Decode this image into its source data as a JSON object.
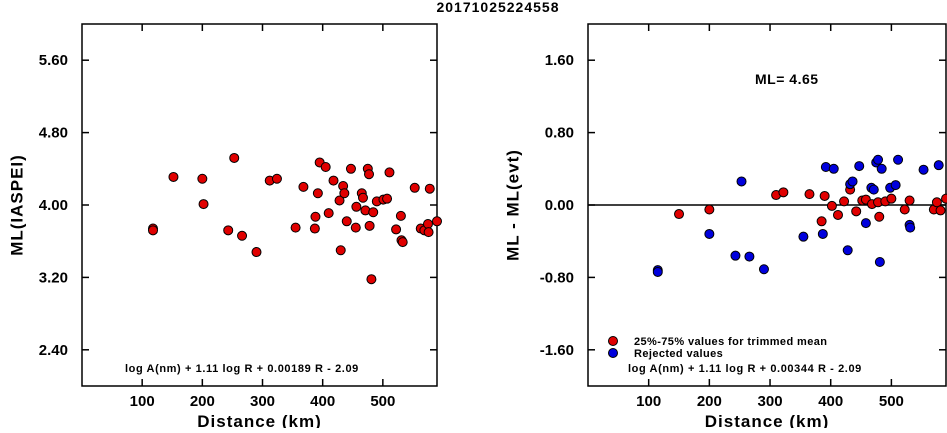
{
  "title": "20171025224558",
  "colors": {
    "red": "#e00000",
    "blue": "#0000dd",
    "axis": "#000000"
  },
  "chart_data": [
    {
      "type": "scatter",
      "xlabel": "Distance (km)",
      "ylabel": "ML(IASPEI)",
      "xlim": [
        0,
        590
      ],
      "ylim": [
        2.0,
        6.0
      ],
      "xticks": [
        100,
        200,
        300,
        400,
        500
      ],
      "xtick_labels": [
        "100",
        "200",
        "300",
        "400",
        "500"
      ],
      "yticks": [
        2.4,
        3.2,
        4.0,
        4.8,
        5.6
      ],
      "ytick_labels": [
        "2.40",
        "3.20",
        "4.00",
        "4.80",
        "5.60"
      ],
      "formula": "log A(nm) + 1.11 log R + 0.00189 R - 2.09",
      "series": [
        {
          "color": "red",
          "points": [
            [
              118,
              3.74
            ],
            [
              118,
              3.72
            ],
            [
              152,
              4.31
            ],
            [
              200,
              4.29
            ],
            [
              202,
              4.01
            ],
            [
              243,
              3.72
            ],
            [
              253,
              4.52
            ],
            [
              266,
              3.66
            ],
            [
              290,
              3.48
            ],
            [
              312,
              4.27
            ],
            [
              324,
              4.29
            ],
            [
              355,
              3.75
            ],
            [
              368,
              4.2
            ],
            [
              387,
              3.74
            ],
            [
              388,
              3.87
            ],
            [
              392,
              4.13
            ],
            [
              395,
              4.47
            ],
            [
              405,
              4.42
            ],
            [
              410,
              3.91
            ],
            [
              418,
              4.27
            ],
            [
              428,
              4.05
            ],
            [
              430,
              3.5
            ],
            [
              434,
              4.21
            ],
            [
              436,
              4.13
            ],
            [
              440,
              3.82
            ],
            [
              447,
              4.4
            ],
            [
              455,
              3.75
            ],
            [
              456,
              3.98
            ],
            [
              465,
              4.13
            ],
            [
              467,
              4.08
            ],
            [
              471,
              3.94
            ],
            [
              475,
              4.4
            ],
            [
              477,
              4.34
            ],
            [
              478,
              3.77
            ],
            [
              481,
              3.18
            ],
            [
              484,
              3.92
            ],
            [
              490,
              4.04
            ],
            [
              501,
              4.06
            ],
            [
              507,
              4.07
            ],
            [
              511,
              4.36
            ],
            [
              522,
              3.73
            ],
            [
              530,
              3.88
            ],
            [
              531,
              3.61
            ],
            [
              533,
              3.59
            ],
            [
              553,
              4.19
            ],
            [
              563,
              3.74
            ],
            [
              569,
              3.72
            ],
            [
              575,
              3.79
            ],
            [
              576,
              3.7
            ],
            [
              578,
              4.18
            ],
            [
              590,
              3.82
            ]
          ]
        }
      ]
    },
    {
      "type": "scatter",
      "xlabel": "Distance (km)",
      "ylabel": "ML - ML(evt)",
      "xlim": [
        0,
        590
      ],
      "ylim": [
        -2.0,
        2.0
      ],
      "xticks": [
        100,
        200,
        300,
        400,
        500
      ],
      "xtick_labels": [
        "100",
        "200",
        "300",
        "400",
        "500"
      ],
      "yticks": [
        -1.6,
        -0.8,
        0.0,
        0.8,
        1.6
      ],
      "ytick_labels": [
        "-1.60",
        "-0.80",
        "0.00",
        "0.80",
        "1.60"
      ],
      "reference_line_y": 0.0,
      "annotation": "ML= 4.65",
      "formula": "log A(nm) + 1.11 log R + 0.00344 R - 2.09",
      "legend": [
        {
          "label": "25%-75% values for trimmed mean",
          "color": "red"
        },
        {
          "label": "Rejected values",
          "color": "blue"
        }
      ],
      "series": [
        {
          "name": "25%-75% values for trimmed mean",
          "color": "red",
          "points": [
            [
              150,
              -0.1
            ],
            [
              200,
              -0.05
            ],
            [
              310,
              0.11
            ],
            [
              322,
              0.14
            ],
            [
              365,
              0.12
            ],
            [
              385,
              -0.18
            ],
            [
              390,
              0.1
            ],
            [
              402,
              -0.01
            ],
            [
              412,
              -0.11
            ],
            [
              422,
              0.04
            ],
            [
              432,
              0.17
            ],
            [
              442,
              -0.07
            ],
            [
              452,
              0.05
            ],
            [
              458,
              0.06
            ],
            [
              468,
              0.01
            ],
            [
              478,
              0.03
            ],
            [
              480,
              -0.13
            ],
            [
              490,
              0.04
            ],
            [
              500,
              0.07
            ],
            [
              522,
              -0.05
            ],
            [
              530,
              0.05
            ],
            [
              570,
              -0.05
            ],
            [
              575,
              0.03
            ],
            [
              581,
              -0.06
            ],
            [
              590,
              0.07
            ]
          ]
        },
        {
          "name": "Rejected values",
          "color": "blue",
          "points": [
            [
              115,
              -0.72
            ],
            [
              115,
              -0.74
            ],
            [
              200,
              -0.32
            ],
            [
              243,
              -0.56
            ],
            [
              253,
              0.26
            ],
            [
              266,
              -0.57
            ],
            [
              290,
              -0.71
            ],
            [
              355,
              -0.35
            ],
            [
              387,
              -0.32
            ],
            [
              392,
              0.42
            ],
            [
              405,
              0.4
            ],
            [
              428,
              -0.5
            ],
            [
              432,
              0.23
            ],
            [
              436,
              0.26
            ],
            [
              447,
              0.43
            ],
            [
              458,
              -0.2
            ],
            [
              467,
              0.19
            ],
            [
              471,
              0.17
            ],
            [
              475,
              0.47
            ],
            [
              478,
              0.5
            ],
            [
              481,
              -0.63
            ],
            [
              484,
              0.4
            ],
            [
              498,
              0.19
            ],
            [
              507,
              0.22
            ],
            [
              511,
              0.5
            ],
            [
              530,
              -0.22
            ],
            [
              531,
              -0.25
            ],
            [
              553,
              0.39
            ],
            [
              578,
              0.44
            ]
          ]
        }
      ]
    }
  ]
}
